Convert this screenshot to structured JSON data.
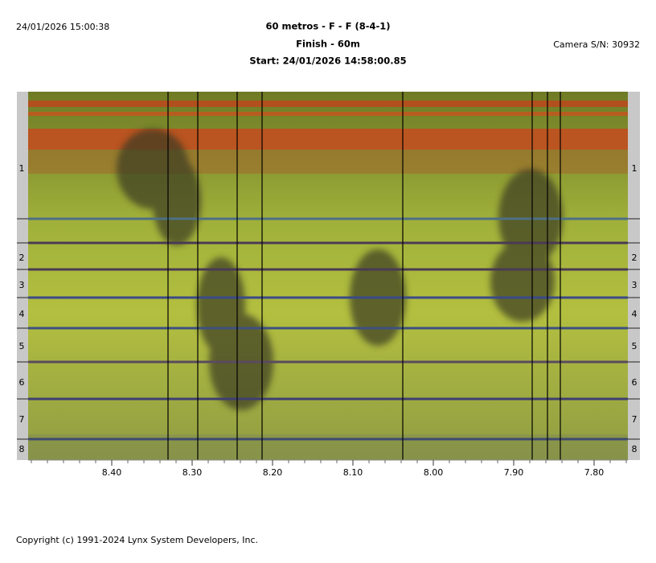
{
  "header": {
    "timestamp": "24/01/2026 15:00:38",
    "title": "60 metros - F - F (8-4-1)",
    "subtitle": "Finish - 60m",
    "start": "Start: 24/01/2026 14:58:00.85",
    "camera": "Camera S/N: 30932"
  },
  "lanes": [
    "1",
    "2",
    "3",
    "4",
    "5",
    "6",
    "7",
    "8"
  ],
  "time_axis": {
    "xlim": [
      8.504,
      7.758
    ],
    "xticks": [
      {
        "value": 8.4,
        "label": "8.40"
      },
      {
        "value": 8.3,
        "label": "8.30"
      },
      {
        "value": 8.2,
        "label": "8.20"
      },
      {
        "value": 8.1,
        "label": "8.10"
      },
      {
        "value": 8.0,
        "label": "8.00"
      },
      {
        "value": 7.9,
        "label": "7.90"
      },
      {
        "value": 7.8,
        "label": "7.80"
      }
    ]
  },
  "finish_lines": [
    8.33,
    8.293,
    8.244,
    8.213,
    8.038,
    7.877,
    7.858,
    7.842
  ],
  "footer": "Copyright (c) 1991-2024 Lynx System Developers, Inc."
}
